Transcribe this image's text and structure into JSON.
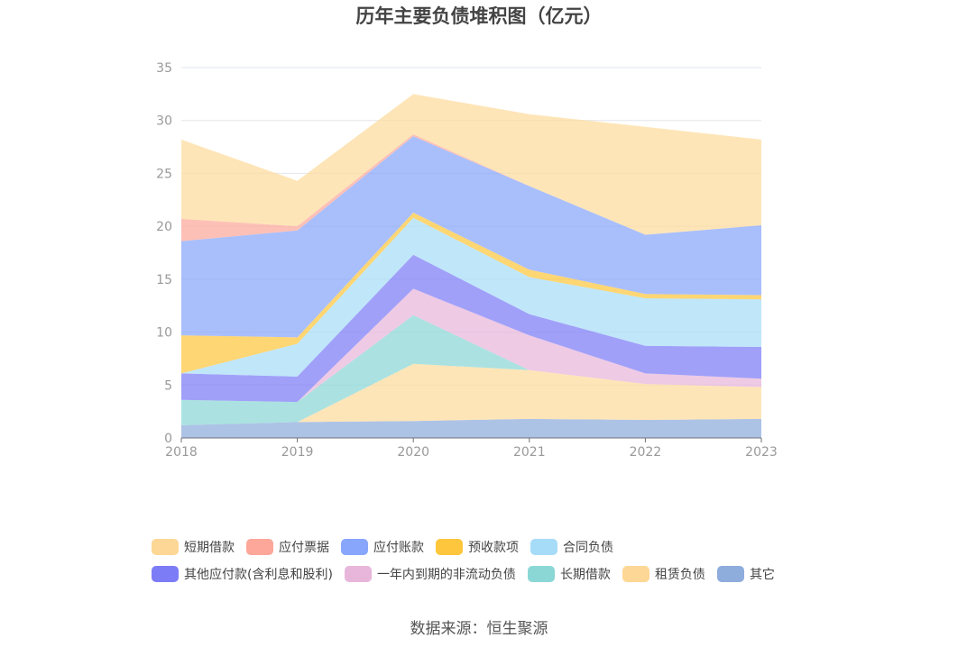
{
  "chart_data": {
    "type": "area",
    "stacked": true,
    "title": "历年主要负债堆积图（亿元）",
    "x": [
      "2018",
      "2019",
      "2020",
      "2021",
      "2022",
      "2023"
    ],
    "ylim": [
      0,
      35
    ],
    "yticks": [
      0,
      5,
      10,
      15,
      20,
      25,
      30,
      35
    ],
    "grid": true,
    "legend_position": "bottom",
    "series": [
      {
        "name": "其它",
        "color": "#8eacdc",
        "values": [
          1.2,
          1.5,
          1.6,
          1.8,
          1.7,
          1.8
        ]
      },
      {
        "name": "租赁负债",
        "color": "#fddb9c",
        "values": [
          0.0,
          0.0,
          5.4,
          4.6,
          3.4,
          3.0
        ]
      },
      {
        "name": "长期借款",
        "color": "#8bd7d6",
        "values": [
          2.4,
          1.9,
          4.6,
          0.0,
          0.0,
          0.0
        ]
      },
      {
        "name": "一年内到期的非流动负债",
        "color": "#e8b6db",
        "values": [
          0.0,
          0.0,
          2.5,
          3.3,
          1.0,
          0.8
        ]
      },
      {
        "name": "其他应付款(含利息和股利)",
        "color": "#7c7cf6",
        "values": [
          2.5,
          2.4,
          3.2,
          2.0,
          2.6,
          3.0
        ]
      },
      {
        "name": "合同负债",
        "color": "#a7dcf8",
        "values": [
          0.0,
          3.1,
          3.5,
          3.5,
          4.5,
          4.5
        ]
      },
      {
        "name": "预收款项",
        "color": "#fdc63d",
        "values": [
          3.6,
          0.6,
          0.5,
          0.7,
          0.4,
          0.4
        ]
      },
      {
        "name": "应付账款",
        "color": "#88a6fb",
        "values": [
          8.9,
          10.1,
          7.2,
          7.9,
          5.6,
          6.6
        ]
      },
      {
        "name": "应付票据",
        "color": "#fca79a",
        "values": [
          2.1,
          0.4,
          0.2,
          0.0,
          0.0,
          0.0
        ]
      },
      {
        "name": "短期借款",
        "color": "#fddb9c",
        "values": [
          7.5,
          4.3,
          3.8,
          6.8,
          10.2,
          8.1
        ]
      }
    ]
  },
  "legend": {
    "row1": [
      {
        "label": "短期借款",
        "color": "#fdd795"
      },
      {
        "label": "应付票据",
        "color": "#fca79a"
      },
      {
        "label": "应付账款",
        "color": "#88a6fb"
      },
      {
        "label": "预收款项",
        "color": "#fdc63d"
      },
      {
        "label": "合同负债",
        "color": "#a7dcf8"
      }
    ],
    "row2": [
      {
        "label": "其他应付款(含利息和股利)",
        "color": "#7c7cf6"
      },
      {
        "label": "一年内到期的非流动负债",
        "color": "#e8b6db"
      },
      {
        "label": "长期借款",
        "color": "#8bd7d6"
      },
      {
        "label": "租赁负债",
        "color": "#fdd795"
      },
      {
        "label": "其它",
        "color": "#8eacdc"
      }
    ]
  },
  "source": "数据来源：恒生聚源"
}
